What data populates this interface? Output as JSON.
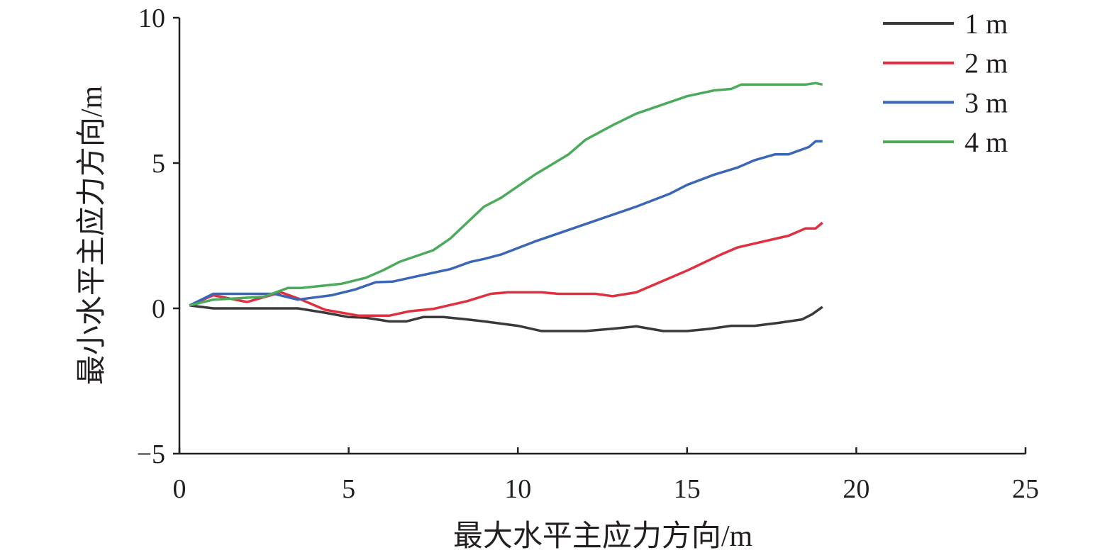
{
  "chart_data": {
    "type": "line",
    "title": "",
    "xlabel": "最大水平主应力方向/m",
    "ylabel": "最小水平主应力方向/m",
    "xlim": [
      0,
      25
    ],
    "ylim": [
      -5,
      10
    ],
    "xticks": [
      0,
      5,
      10,
      15,
      20,
      25
    ],
    "yticks": [
      -5,
      0,
      5,
      10
    ],
    "xtick_labels": [
      "0",
      "5",
      "10",
      "15",
      "20",
      "25"
    ],
    "ytick_labels": [
      "−5",
      "0",
      "5",
      "10"
    ],
    "grid": false,
    "legend_position": "top-right",
    "series": [
      {
        "name": "1 m",
        "color": "#3a3a3c",
        "x": [
          0.3,
          1,
          2,
          3,
          3.5,
          4.3,
          5,
          5.5,
          6.2,
          6.7,
          7.2,
          7.8,
          8.5,
          9,
          10,
          10.7,
          11.5,
          12,
          12.8,
          13.5,
          14.3,
          15,
          15.7,
          16.3,
          17,
          17.7,
          18.4,
          18.7,
          19
        ],
        "y": [
          0.1,
          0,
          0,
          0,
          0,
          -0.15,
          -0.3,
          -0.32,
          -0.45,
          -0.45,
          -0.3,
          -0.3,
          -0.38,
          -0.45,
          -0.6,
          -0.78,
          -0.78,
          -0.78,
          -0.7,
          -0.62,
          -0.78,
          -0.78,
          -0.7,
          -0.6,
          -0.6,
          -0.5,
          -0.38,
          -0.2,
          0.05
        ]
      },
      {
        "name": "2 m",
        "color": "#e03040",
        "x": [
          0.3,
          1,
          2,
          3,
          3.6,
          4.3,
          5.3,
          6.2,
          6.8,
          7.5,
          8.5,
          9.2,
          9.7,
          10.7,
          11.2,
          12.3,
          12.8,
          13.5,
          15,
          16,
          16.5,
          18,
          18.5,
          18.8,
          19
        ],
        "y": [
          0.1,
          0.45,
          0.22,
          0.55,
          0.3,
          -0.05,
          -0.25,
          -0.25,
          -0.1,
          -0.02,
          0.25,
          0.5,
          0.55,
          0.55,
          0.5,
          0.5,
          0.42,
          0.55,
          1.3,
          1.85,
          2.1,
          2.5,
          2.75,
          2.75,
          2.95
        ]
      },
      {
        "name": "3 m",
        "color": "#3a66b8",
        "x": [
          0.3,
          1,
          2.8,
          3.5,
          4.5,
          5.2,
          5.8,
          6.3,
          7,
          8,
          8.6,
          9,
          9.5,
          10.5,
          11.5,
          12.5,
          13.5,
          14.5,
          15,
          15.8,
          16.5,
          17,
          17.6,
          18,
          18.6,
          18.8,
          19
        ],
        "y": [
          0.1,
          0.5,
          0.5,
          0.3,
          0.45,
          0.65,
          0.9,
          0.92,
          1.1,
          1.35,
          1.6,
          1.7,
          1.85,
          2.3,
          2.7,
          3.1,
          3.5,
          3.95,
          4.25,
          4.6,
          4.85,
          5.1,
          5.3,
          5.3,
          5.55,
          5.75,
          5.75
        ]
      },
      {
        "name": "4 m",
        "color": "#4caa5c",
        "x": [
          0.3,
          1,
          2.5,
          3.2,
          3.6,
          4,
          4.8,
          5.5,
          6,
          6.5,
          7.5,
          8,
          9,
          9.5,
          10.5,
          11.5,
          12,
          12.8,
          13.5,
          15,
          15.8,
          16.3,
          16.6,
          18.5,
          18.8,
          19
        ],
        "y": [
          0.1,
          0.3,
          0.4,
          0.7,
          0.7,
          0.75,
          0.85,
          1.05,
          1.3,
          1.6,
          2.0,
          2.4,
          3.5,
          3.8,
          4.6,
          5.3,
          5.8,
          6.3,
          6.7,
          7.3,
          7.5,
          7.55,
          7.7,
          7.7,
          7.75,
          7.7
        ]
      }
    ]
  }
}
